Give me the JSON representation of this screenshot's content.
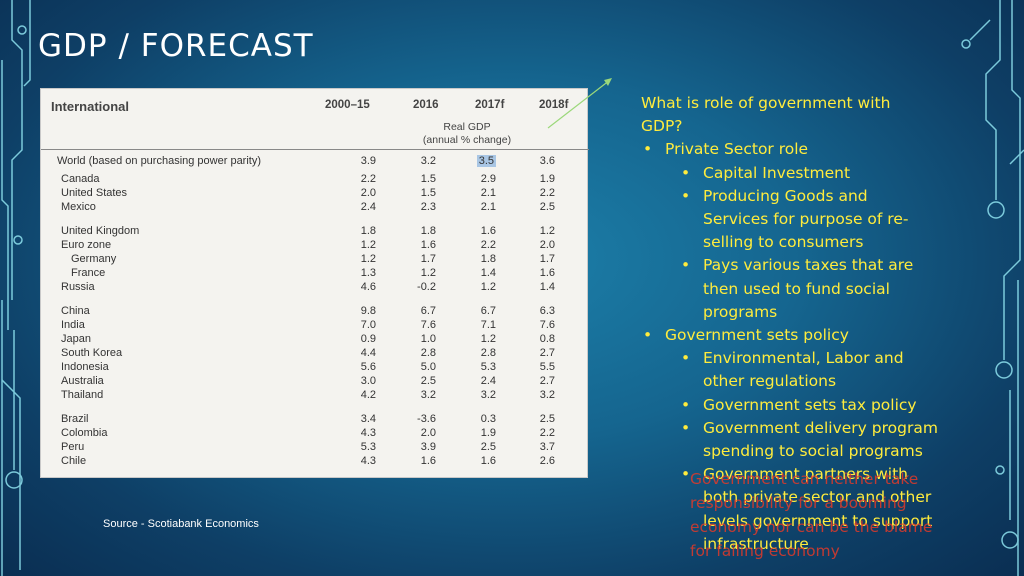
{
  "slide": {
    "title": "GDP / FORECAST",
    "source": "Source - Scotiabank Economics"
  },
  "table": {
    "headers": [
      "International",
      "2000–15",
      "2016",
      "2017f",
      "2018f"
    ],
    "subheader_line1": "Real GDP",
    "subheader_line2": "(annual % change)",
    "highlight_color": "#a9c6e4",
    "rows": [
      {
        "name": "World (based on purchasing power parity)",
        "v": [
          "3.9",
          "3.2",
          "3.5",
          "3.6"
        ]
      },
      {
        "name": "Canada",
        "v": [
          "2.2",
          "1.5",
          "2.9",
          "1.9"
        ]
      },
      {
        "name": "United States",
        "v": [
          "2.0",
          "1.5",
          "2.1",
          "2.2"
        ]
      },
      {
        "name": "Mexico",
        "v": [
          "2.4",
          "2.3",
          "2.1",
          "2.5"
        ]
      },
      {
        "name": "United Kingdom",
        "v": [
          "1.8",
          "1.8",
          "1.6",
          "1.2"
        ]
      },
      {
        "name": "Euro zone",
        "v": [
          "1.2",
          "1.6",
          "2.2",
          "2.0"
        ]
      },
      {
        "name": "Germany",
        "v": [
          "1.2",
          "1.7",
          "1.8",
          "1.7"
        ]
      },
      {
        "name": "France",
        "v": [
          "1.3",
          "1.2",
          "1.4",
          "1.6"
        ]
      },
      {
        "name": "Russia",
        "v": [
          "4.6",
          "-0.2",
          "1.2",
          "1.4"
        ]
      },
      {
        "name": "China",
        "v": [
          "9.8",
          "6.7",
          "6.7",
          "6.3"
        ]
      },
      {
        "name": "India",
        "v": [
          "7.0",
          "7.6",
          "7.1",
          "7.6"
        ]
      },
      {
        "name": "Japan",
        "v": [
          "0.9",
          "1.0",
          "1.2",
          "0.8"
        ]
      },
      {
        "name": "South Korea",
        "v": [
          "4.4",
          "2.8",
          "2.8",
          "2.7"
        ]
      },
      {
        "name": "Indonesia",
        "v": [
          "5.6",
          "5.0",
          "5.3",
          "5.5"
        ]
      },
      {
        "name": "Australia",
        "v": [
          "3.0",
          "2.5",
          "2.4",
          "2.7"
        ]
      },
      {
        "name": "Thailand",
        "v": [
          "4.2",
          "3.2",
          "3.2",
          "3.2"
        ]
      },
      {
        "name": "Brazil",
        "v": [
          "3.4",
          "-3.6",
          "0.3",
          "2.5"
        ]
      },
      {
        "name": "Colombia",
        "v": [
          "4.3",
          "2.0",
          "1.9",
          "2.2"
        ]
      },
      {
        "name": "Peru",
        "v": [
          "5.3",
          "3.9",
          "2.5",
          "3.7"
        ]
      },
      {
        "name": "Chile",
        "v": [
          "4.3",
          "1.6",
          "1.6",
          "2.6"
        ]
      }
    ]
  },
  "text_lines": [
    {
      "t": "What is role of government with",
      "b": ""
    },
    {
      "t": "GDP?",
      "b": ""
    },
    {
      "t": "Private Sector role",
      "b": "•"
    },
    {
      "t": "Capital Investment",
      "b": "•"
    },
    {
      "t": "Producing Goods and",
      "b": "•"
    },
    {
      "t": "Services for purpose of re-",
      "b": ""
    },
    {
      "t": "selling to consumers",
      "b": ""
    },
    {
      "t": "Pays various taxes that are",
      "b": "•"
    },
    {
      "t": "then used to fund social",
      "b": ""
    },
    {
      "t": "programs",
      "b": ""
    },
    {
      "t": "Government sets policy",
      "b": "•"
    },
    {
      "t": "Environmental, Labor and",
      "b": "•"
    },
    {
      "t": "other regulations",
      "b": ""
    },
    {
      "t": "Government sets tax policy",
      "b": "•"
    },
    {
      "t": "Government delivery program",
      "b": "•"
    },
    {
      "t": "spending to social programs",
      "b": ""
    },
    {
      "t": "Government partners with",
      "b": "•"
    },
    {
      "t": "both private sector and other",
      "b": ""
    },
    {
      "t": "levels government to support",
      "b": ""
    },
    {
      "t": "infrastructure",
      "b": ""
    }
  ],
  "overlay_lines": [
    "Government can neither take",
    "responsibility for a booming",
    "economy nor can be the blame",
    "for failing economy"
  ],
  "colors": {
    "text_yellow": "#ffec3d",
    "overlay_red": "#e03a2a",
    "circuit": "#8fe3f0"
  }
}
